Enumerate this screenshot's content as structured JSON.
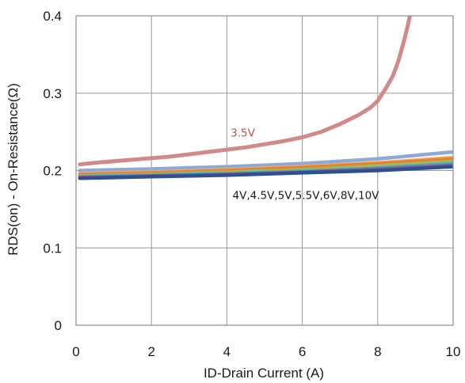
{
  "chart_data": {
    "type": "line",
    "title": "",
    "xlabel": "ID-Drain Current (A)",
    "ylabel": "RDS(on) - On-Resistance(Ω)",
    "xlim": [
      0,
      10
    ],
    "ylim": [
      0,
      0.4
    ],
    "xticks": [
      0,
      2,
      4,
      6,
      8,
      10
    ],
    "yticks": [
      0,
      0.1,
      0.2,
      0.3,
      0.4
    ],
    "xtick_labels": [
      "0",
      "2",
      "4",
      "6",
      "8",
      "10"
    ],
    "ytick_labels": [
      "0",
      "0.1",
      "0.2",
      "0.3",
      "0.4"
    ],
    "grid": true,
    "legend": "none",
    "colors": {
      "grid": "#9a9a9a",
      "frame": "#8c8c8c",
      "label_3v5": "#c0504d",
      "label_others": "#1a1a1a"
    },
    "series": [
      {
        "name": "3.5V",
        "color": "#d08a8a",
        "x": [
          0.1,
          0.5,
          1.0,
          1.5,
          2.0,
          2.5,
          3.0,
          3.5,
          4.0,
          4.5,
          5.0,
          5.5,
          6.0,
          6.5,
          7.0,
          7.5,
          7.8,
          8.0,
          8.2,
          8.4,
          8.55,
          8.7,
          8.8,
          8.9
        ],
        "y": [
          0.208,
          0.21,
          0.212,
          0.214,
          0.216,
          0.218,
          0.221,
          0.224,
          0.227,
          0.23,
          0.234,
          0.238,
          0.243,
          0.25,
          0.26,
          0.272,
          0.281,
          0.29,
          0.305,
          0.322,
          0.342,
          0.368,
          0.388,
          0.41
        ]
      },
      {
        "name": "",
        "color": "#8ea9d6",
        "x": [
          0.1,
          2,
          4,
          6,
          8,
          10
        ],
        "y": [
          0.2,
          0.202,
          0.205,
          0.209,
          0.215,
          0.224
        ]
      },
      {
        "name": "",
        "color": "#f0b46a",
        "x": [
          0.1,
          2,
          4,
          6,
          8,
          10
        ],
        "y": [
          0.196,
          0.198,
          0.201,
          0.205,
          0.21,
          0.217
        ]
      },
      {
        "name": "",
        "color": "#ec7d31",
        "x": [
          0.1,
          2,
          4,
          6,
          8,
          10
        ],
        "y": [
          0.195,
          0.197,
          0.2,
          0.204,
          0.209,
          0.215
        ]
      },
      {
        "name": "",
        "color": "#9bbb59",
        "x": [
          0.1,
          2,
          4,
          6,
          8,
          10
        ],
        "y": [
          0.193,
          0.195,
          0.198,
          0.201,
          0.206,
          0.212
        ]
      },
      {
        "name": "",
        "color": "#4bacc6",
        "x": [
          0.1,
          2,
          4,
          6,
          8,
          10
        ],
        "y": [
          0.192,
          0.194,
          0.196,
          0.199,
          0.203,
          0.209
        ]
      },
      {
        "name": "",
        "color": "#8064a2",
        "x": [
          0.1,
          2,
          4,
          6,
          8,
          10
        ],
        "y": [
          0.191,
          0.193,
          0.195,
          0.198,
          0.202,
          0.207
        ]
      },
      {
        "name": "",
        "color": "#2f4f8f",
        "x": [
          0.1,
          2,
          4,
          6,
          8,
          10
        ],
        "y": [
          0.19,
          0.192,
          0.194,
          0.197,
          0.2,
          0.205
        ]
      }
    ],
    "annotations": [
      {
        "text": "3.5V",
        "x": 4.1,
        "y": 0.244,
        "color_key": "label_3v5"
      },
      {
        "text": "4V,4.5V,5V,5.5V,6V,8V,10V",
        "x": 4.15,
        "y": 0.163,
        "color_key": "label_others"
      }
    ]
  }
}
